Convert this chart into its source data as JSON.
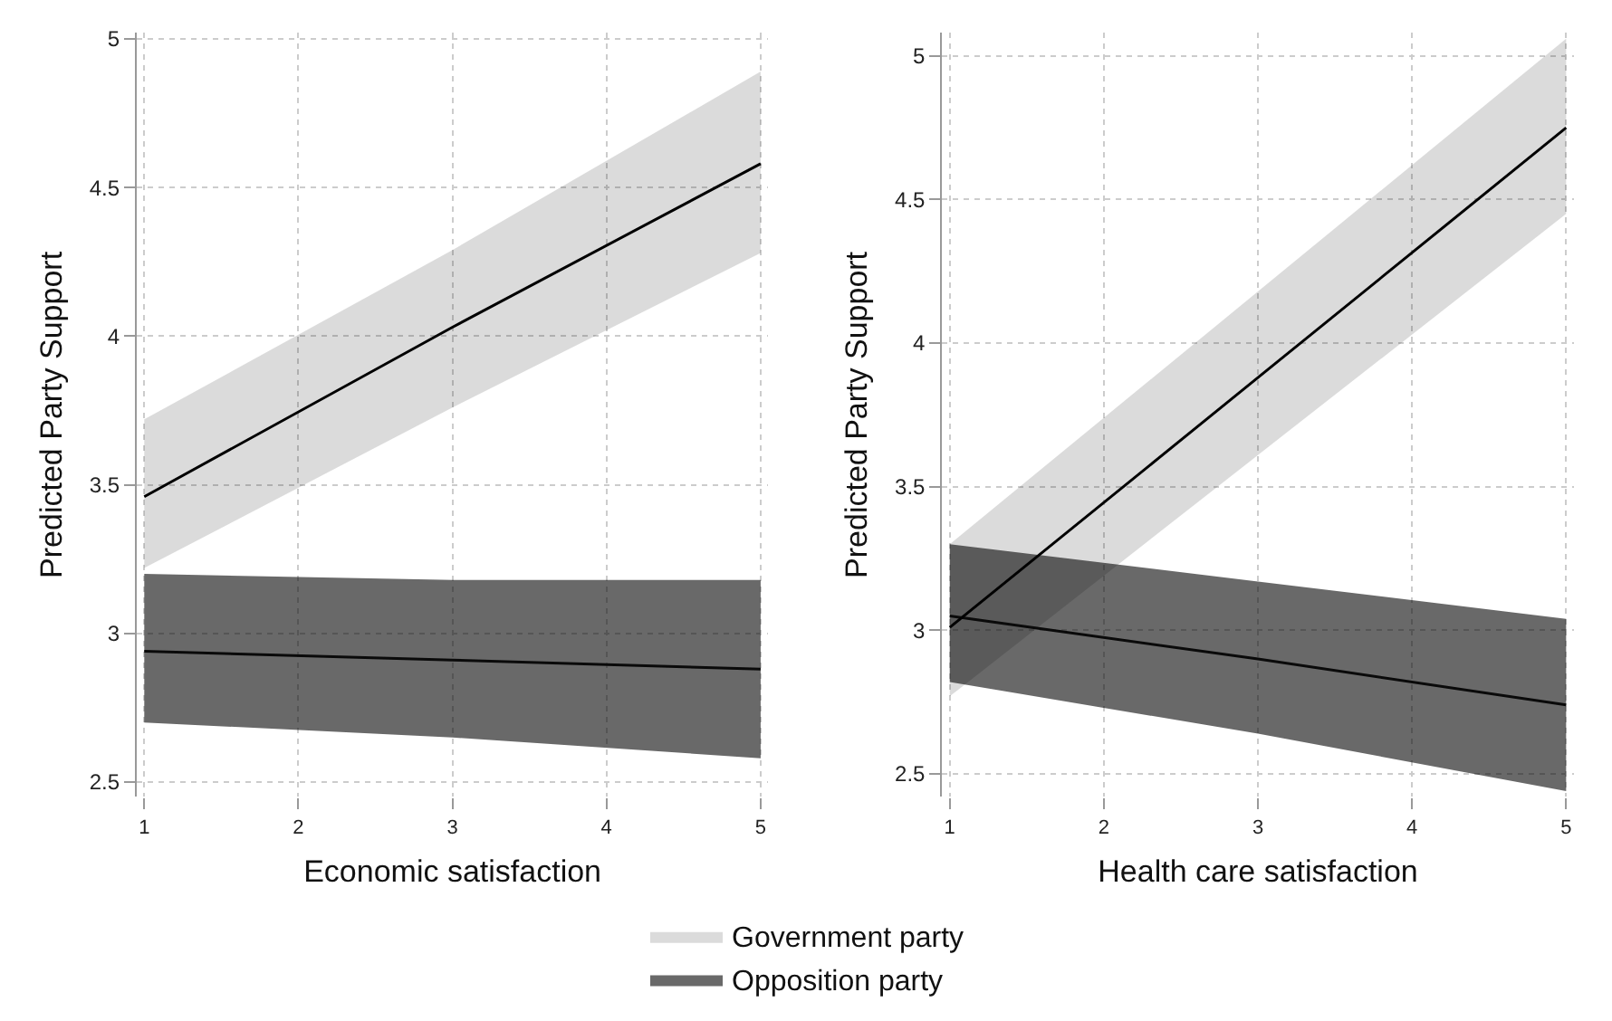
{
  "chart_data": [
    {
      "type": "line",
      "xlabel": "Economic satisfaction",
      "ylabel": "Predicted Party Support",
      "xlim": [
        0.95,
        5.05
      ],
      "xticks": [
        1,
        2,
        3,
        4,
        5
      ],
      "ylim": [
        2.45,
        5.02
      ],
      "yticks": [
        2.5,
        3,
        3.5,
        4,
        4.5,
        5
      ],
      "grid": true,
      "legend": "bottom",
      "marker": "none",
      "series": [
        {
          "name": "Government party",
          "color": "#000000",
          "x": [
            1,
            3,
            5
          ],
          "values": [
            3.46,
            4.03,
            4.58
          ],
          "lower": [
            3.22,
            3.76,
            4.28
          ],
          "upper": [
            3.72,
            4.29,
            4.89
          ]
        },
        {
          "name": "Opposition party",
          "color": "#0a0a0a",
          "x": [
            1,
            3,
            5
          ],
          "values": [
            2.94,
            2.91,
            2.88
          ],
          "lower": [
            2.7,
            2.65,
            2.58
          ],
          "upper": [
            3.2,
            3.18,
            3.18
          ]
        }
      ]
    },
    {
      "type": "line",
      "xlabel": "Health care satisfaction",
      "ylabel": "Predicted Party Support",
      "xlim": [
        0.95,
        5.05
      ],
      "xticks": [
        1,
        2,
        3,
        4,
        5
      ],
      "ylim": [
        2.42,
        5.08
      ],
      "yticks": [
        2.5,
        3,
        3.5,
        4,
        4.5,
        5
      ],
      "grid": true,
      "marker": "none",
      "series": [
        {
          "color": "#000000",
          "x": [
            1,
            3,
            5
          ],
          "values": [
            3.01,
            3.88,
            4.75
          ],
          "lower": [
            2.77,
            3.61,
            4.45
          ],
          "upper": [
            3.3,
            4.18,
            5.06
          ]
        },
        {
          "color": "#0a0a0a",
          "x": [
            1,
            3,
            5
          ],
          "values": [
            3.05,
            2.9,
            2.74
          ],
          "lower": [
            2.82,
            2.64,
            2.44
          ],
          "upper": [
            3.3,
            3.17,
            3.04
          ]
        }
      ]
    }
  ]
}
